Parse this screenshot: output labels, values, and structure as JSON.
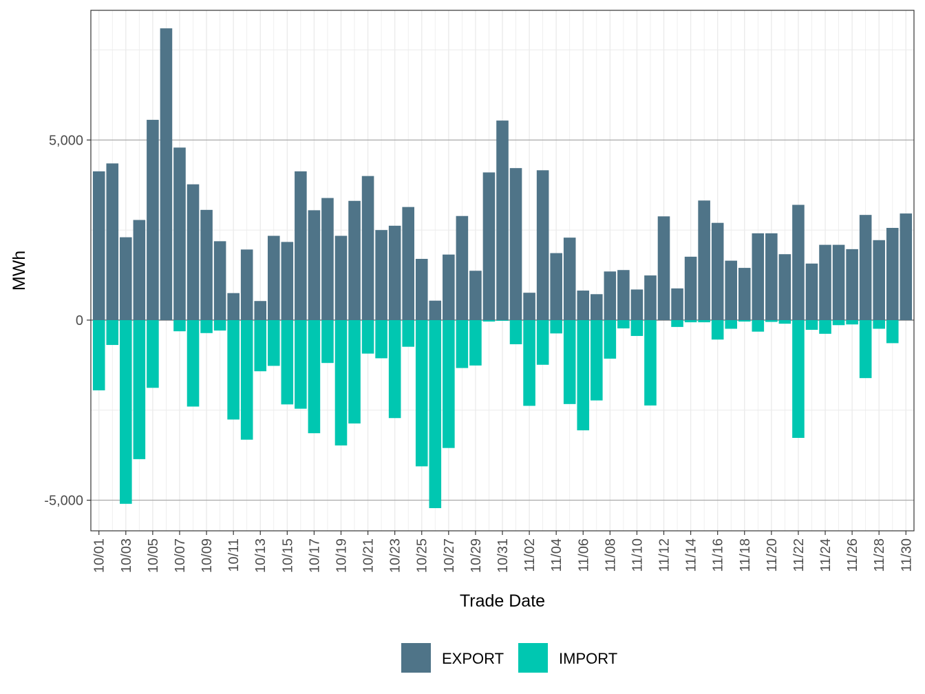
{
  "chart_data": {
    "type": "bar",
    "xlabel": "Trade Date",
    "ylabel": "MWh",
    "ylim": [
      -5850,
      8600
    ],
    "y_ticks": [
      -5000,
      0,
      5000
    ],
    "y_tick_labels": [
      "-5,000",
      "0",
      "5,000"
    ],
    "y_minor_ticks": [
      -2500,
      2500,
      7500
    ],
    "grid": true,
    "legend_position": "bottom",
    "categories": [
      "10/01",
      "10/02",
      "10/03",
      "10/04",
      "10/05",
      "10/06",
      "10/07",
      "10/08",
      "10/09",
      "10/10",
      "10/11",
      "10/12",
      "10/13",
      "10/14",
      "10/15",
      "10/16",
      "10/17",
      "10/18",
      "10/19",
      "10/20",
      "10/21",
      "10/22",
      "10/23",
      "10/24",
      "10/25",
      "10/26",
      "10/27",
      "10/28",
      "10/29",
      "10/30",
      "10/31",
      "11/01",
      "11/02",
      "11/03",
      "11/04",
      "11/05",
      "11/06",
      "11/07",
      "11/08",
      "11/09",
      "11/10",
      "11/11",
      "11/12",
      "11/13",
      "11/14",
      "11/15",
      "11/16",
      "11/17",
      "11/18",
      "11/19",
      "11/20",
      "11/21",
      "11/22",
      "11/23",
      "11/24",
      "11/25",
      "11/26",
      "11/27",
      "11/28",
      "11/29",
      "11/30"
    ],
    "x_tick_labels": [
      "10/01",
      "10/03",
      "10/05",
      "10/07",
      "10/09",
      "10/11",
      "10/13",
      "10/15",
      "10/17",
      "10/19",
      "10/21",
      "10/23",
      "10/25",
      "10/27",
      "10/29",
      "10/31",
      "11/02",
      "11/04",
      "11/06",
      "11/08",
      "11/10",
      "11/12",
      "11/14",
      "11/16",
      "11/18",
      "11/20",
      "11/22",
      "11/24",
      "11/26",
      "11/28",
      "11/30"
    ],
    "series": [
      {
        "name": "EXPORT",
        "color": "#4f7488",
        "values": [
          4130,
          4350,
          2300,
          2780,
          5560,
          8100,
          4790,
          3770,
          3060,
          2190,
          750,
          1960,
          530,
          2340,
          2170,
          4130,
          3050,
          3390,
          2340,
          3310,
          4000,
          2500,
          2620,
          3140,
          1700,
          540,
          1820,
          2890,
          1370,
          4100,
          5540,
          4220,
          760,
          4160,
          1860,
          2290,
          820,
          720,
          1350,
          1390,
          850,
          1240,
          2880,
          880,
          1760,
          3320,
          2700,
          1650,
          1450,
          2410,
          2410,
          1830,
          3200,
          1570,
          2090,
          2090,
          1970,
          2920,
          2220,
          2560,
          2960
        ]
      },
      {
        "name": "IMPORT",
        "color": "#00c7b1",
        "values": [
          -1950,
          -690,
          -5100,
          -3860,
          -1880,
          0,
          -310,
          -2400,
          -360,
          -290,
          -2760,
          -3320,
          -1420,
          -1270,
          -2340,
          -2460,
          -3140,
          -1190,
          -3480,
          -2870,
          -930,
          -1060,
          -2720,
          -740,
          -4060,
          -5220,
          -3550,
          -1330,
          -1260,
          -40,
          -20,
          -670,
          -2380,
          -1240,
          -370,
          -2330,
          -3060,
          -2230,
          -1070,
          -230,
          -440,
          -2370,
          0,
          -190,
          -60,
          -60,
          -540,
          -240,
          -40,
          -320,
          -50,
          -100,
          -3270,
          -270,
          -380,
          -140,
          -120,
          -1610,
          -240,
          -640,
          0
        ]
      }
    ]
  }
}
